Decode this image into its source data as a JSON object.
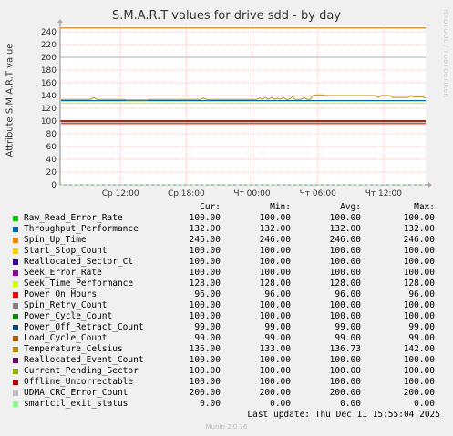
{
  "title": "S.M.A.R.T values for drive sdd - by day",
  "side_label": "RRDTOOL / TOBI OETIKER",
  "chart_data": {
    "type": "line",
    "title": "S.M.A.R.T values for drive sdd - by day",
    "ylabel": "Attribute S.M.A.R.T value",
    "xlabel": "",
    "ylim": [
      0,
      250
    ],
    "yticks": [
      "0",
      "20",
      "40",
      "60",
      "80",
      "100",
      "120",
      "140",
      "160",
      "180",
      "200",
      "220",
      "240"
    ],
    "x_ticks": [
      "Ср 12:00",
      "Ср 18:00",
      "Чт 00:00",
      "Чт 06:00",
      "Чт 12:00"
    ],
    "warning_lines": [
      100,
      246
    ],
    "grid": true,
    "series": [
      {
        "name": "Raw_Read_Error_Rate",
        "color": "#00cc00",
        "value": 100
      },
      {
        "name": "Throughput_Performance",
        "color": "#0066b3",
        "value": 132
      },
      {
        "name": "Spin_Up_Time",
        "color": "#ff8000",
        "value": 246
      },
      {
        "name": "Start_Stop_Count",
        "color": "#ffcc00",
        "value": 100
      },
      {
        "name": "Reallocated_Sector_Ct",
        "color": "#330099",
        "value": 100
      },
      {
        "name": "Seek_Error_Rate",
        "color": "#990099",
        "value": 100
      },
      {
        "name": "Seek_Time_Performance",
        "color": "#ccff00",
        "value": 128
      },
      {
        "name": "Power_On_Hours",
        "color": "#ff0000",
        "value": 96
      },
      {
        "name": "Spin_Retry_Count",
        "color": "#808080",
        "value": 100
      },
      {
        "name": "Power_Cycle_Count",
        "color": "#008f00",
        "value": 100
      },
      {
        "name": "Power_Off_Retract_Count",
        "color": "#00487d",
        "value": 99
      },
      {
        "name": "Load_Cycle_Count",
        "color": "#b35a00",
        "value": 99
      },
      {
        "name": "Temperature_Celsius",
        "color": "#b38f00",
        "value": 136
      },
      {
        "name": "Reallocated_Event_Count",
        "color": "#6b006b",
        "value": 100
      },
      {
        "name": "Current_Pending_Sector",
        "color": "#8fb300",
        "value": 100
      },
      {
        "name": "Offline_Uncorrectable",
        "color": "#b30000",
        "value": 100
      },
      {
        "name": "UDMA_CRC_Error_Count",
        "color": "#bebebe",
        "value": 200
      },
      {
        "name": "smartctl_exit_status",
        "color": "#80ff80",
        "value": 0
      }
    ],
    "temperature_profile": [
      134,
      134,
      134,
      134,
      134,
      134,
      134,
      134,
      134,
      134,
      134,
      137,
      134,
      134,
      134,
      134,
      134,
      134,
      134,
      134,
      134,
      134,
      133,
      133,
      133,
      133,
      133,
      133,
      133,
      133,
      134,
      134,
      134,
      134,
      134,
      134,
      134,
      134,
      134,
      134,
      134,
      134,
      134,
      134,
      134,
      134,
      134,
      134,
      136,
      134,
      134,
      134,
      134,
      134,
      134,
      134,
      134,
      134,
      134,
      134,
      134,
      134,
      134,
      134,
      134,
      134,
      134,
      136,
      134,
      137,
      134,
      137,
      134,
      136,
      134,
      137,
      134,
      134,
      138,
      134,
      134,
      134,
      137,
      134,
      134,
      140,
      141,
      141,
      141,
      140,
      140,
      140,
      140,
      140,
      140,
      140,
      140,
      140,
      140,
      140,
      140,
      140,
      140,
      140,
      140,
      140,
      140,
      137,
      140,
      140,
      140,
      140,
      137,
      137,
      137,
      137,
      137,
      137,
      140,
      138,
      138,
      138,
      138,
      136
    ]
  },
  "legend": {
    "headers": {
      "cur": "Cur:",
      "min": "Min:",
      "avg": "Avg:",
      "max": "Max:"
    },
    "rows": [
      {
        "name": "Raw_Read_Error_Rate",
        "cur": "100.00",
        "min": "100.00",
        "avg": "100.00",
        "max": "100.00"
      },
      {
        "name": "Throughput_Performance",
        "cur": "132.00",
        "min": "132.00",
        "avg": "132.00",
        "max": "132.00"
      },
      {
        "name": "Spin_Up_Time",
        "cur": "246.00",
        "min": "246.00",
        "avg": "246.00",
        "max": "246.00"
      },
      {
        "name": "Start_Stop_Count",
        "cur": "100.00",
        "min": "100.00",
        "avg": "100.00",
        "max": "100.00"
      },
      {
        "name": "Reallocated_Sector_Ct",
        "cur": "100.00",
        "min": "100.00",
        "avg": "100.00",
        "max": "100.00"
      },
      {
        "name": "Seek_Error_Rate",
        "cur": "100.00",
        "min": "100.00",
        "avg": "100.00",
        "max": "100.00"
      },
      {
        "name": "Seek_Time_Performance",
        "cur": "128.00",
        "min": "128.00",
        "avg": "128.00",
        "max": "128.00"
      },
      {
        "name": "Power_On_Hours",
        "cur": "96.00",
        "min": "96.00",
        "avg": "96.00",
        "max": "96.00"
      },
      {
        "name": "Spin_Retry_Count",
        "cur": "100.00",
        "min": "100.00",
        "avg": "100.00",
        "max": "100.00"
      },
      {
        "name": "Power_Cycle_Count",
        "cur": "100.00",
        "min": "100.00",
        "avg": "100.00",
        "max": "100.00"
      },
      {
        "name": "Power_Off_Retract_Count",
        "cur": "99.00",
        "min": "99.00",
        "avg": "99.00",
        "max": "99.00"
      },
      {
        "name": "Load_Cycle_Count",
        "cur": "99.00",
        "min": "99.00",
        "avg": "99.00",
        "max": "99.00"
      },
      {
        "name": "Temperature_Celsius",
        "cur": "136.00",
        "min": "133.00",
        "avg": "136.73",
        "max": "142.00"
      },
      {
        "name": "Reallocated_Event_Count",
        "cur": "100.00",
        "min": "100.00",
        "avg": "100.00",
        "max": "100.00"
      },
      {
        "name": "Current_Pending_Sector",
        "cur": "100.00",
        "min": "100.00",
        "avg": "100.00",
        "max": "100.00"
      },
      {
        "name": "Offline_Uncorrectable",
        "cur": "100.00",
        "min": "100.00",
        "avg": "100.00",
        "max": "100.00"
      },
      {
        "name": "UDMA_CRC_Error_Count",
        "cur": "200.00",
        "min": "200.00",
        "avg": "200.00",
        "max": "200.00"
      },
      {
        "name": "smartctl_exit_status",
        "cur": "0.00",
        "min": "0.00",
        "avg": "0.00",
        "max": "0.00"
      }
    ]
  },
  "last_update": "Last update: Thu Dec 11 15:55:04 2025",
  "footer": "Munin 2.0.76"
}
